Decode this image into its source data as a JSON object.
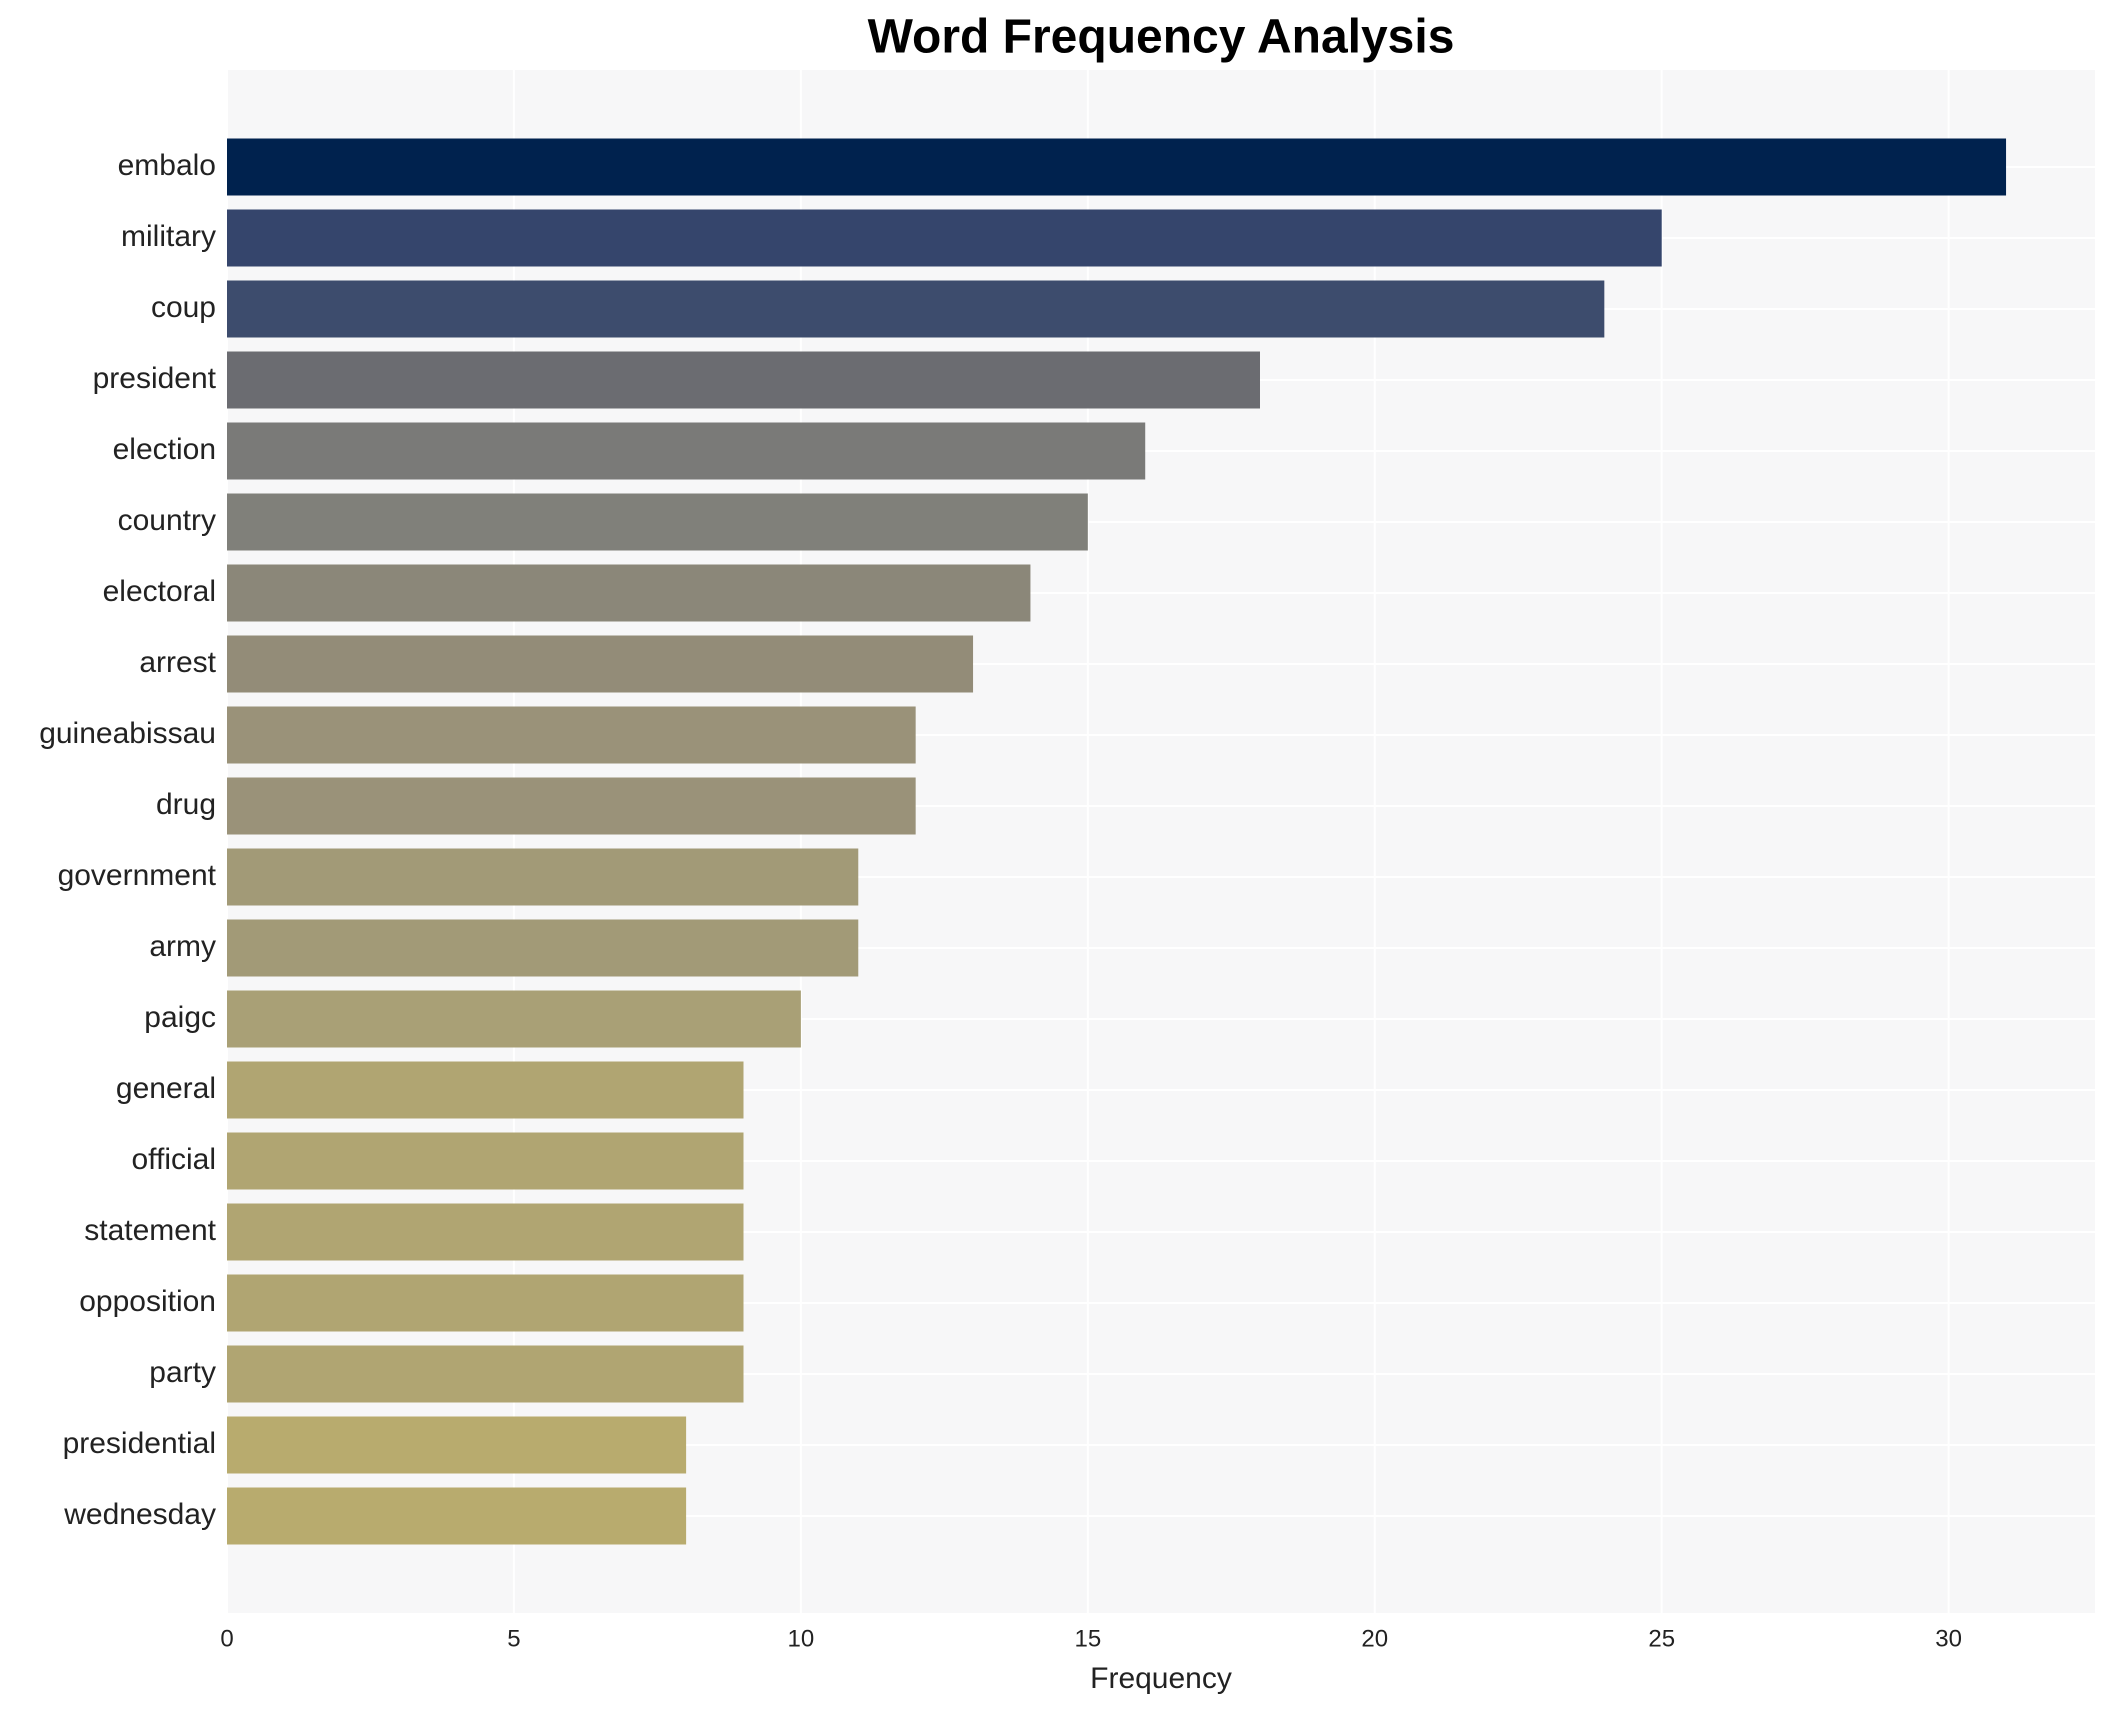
{
  "chart_data": {
    "type": "bar",
    "orientation": "horizontal",
    "title": "Word Frequency Analysis",
    "x_label": "Frequency",
    "categories": [
      "embalo",
      "military",
      "coup",
      "president",
      "election",
      "country",
      "electoral",
      "arrest",
      "guineabissau",
      "drug",
      "government",
      "army",
      "paigc",
      "general",
      "official",
      "statement",
      "opposition",
      "party",
      "presidential",
      "wednesday"
    ],
    "values": [
      31,
      25,
      24,
      18,
      16,
      15,
      14,
      13,
      12,
      12,
      11,
      11,
      10,
      9,
      9,
      9,
      9,
      9,
      8,
      8
    ],
    "colors": [
      "#00224e",
      "#35456c",
      "#3d4c6d",
      "#6b6c71",
      "#7a7a78",
      "#80807a",
      "#8b8779",
      "#938c78",
      "#9a9279",
      "#9a9279",
      "#a29a77",
      "#a29a77",
      "#a9a076",
      "#b0a572",
      "#b0a572",
      "#b0a572",
      "#b0a572",
      "#b0a572",
      "#b8ab6e",
      "#b8ab6e"
    ],
    "xlim": [
      0,
      32.55
    ],
    "xticks": [
      0,
      5,
      10,
      15,
      20,
      25,
      30
    ],
    "grid": true
  }
}
